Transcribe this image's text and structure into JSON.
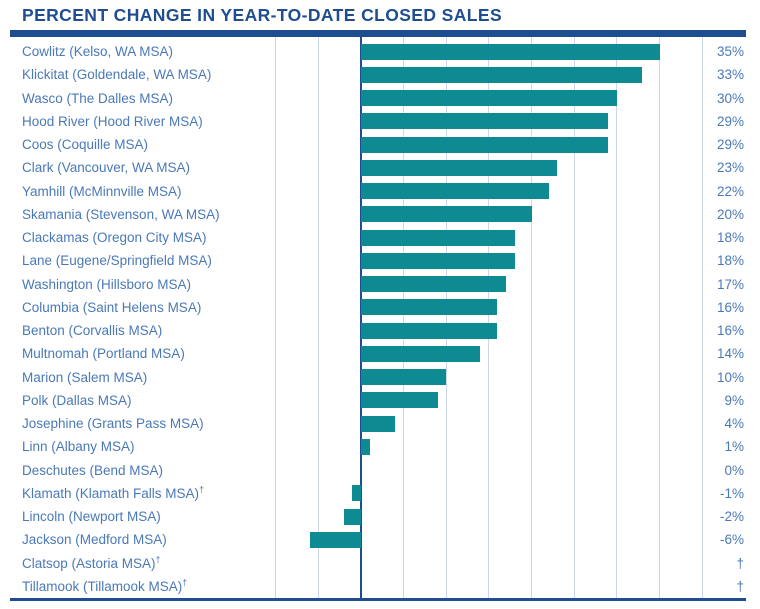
{
  "title": "PERCENT CHANGE IN YEAR-TO-DATE CLOSED SALES",
  "colors": {
    "navy": "#1E4E8F",
    "label_blue": "#4A79B8",
    "bar_teal": "#0E8A93",
    "gridline": "#CDD5E6",
    "background": "#FFFFFF"
  },
  "chart_data": {
    "type": "bar",
    "orientation": "horizontal",
    "title": "PERCENT CHANGE IN YEAR-TO-DATE CLOSED SALES",
    "xlabel": "",
    "ylabel": "",
    "xlim": [
      -10,
      40
    ],
    "gridline_step_pct": 5,
    "grid": "vertical",
    "legend": "none",
    "footnote_mark": "†",
    "categories": [
      "Cowlitz (Kelso, WA MSA)",
      "Klickitat (Goldendale, WA MSA)",
      "Wasco (The Dalles MSA)",
      "Hood River (Hood River MSA)",
      "Coos (Coquille MSA)",
      "Clark (Vancouver, WA MSA)",
      "Yamhill (McMinnville MSA)",
      "Skamania (Stevenson, WA MSA)",
      "Clackamas (Oregon City MSA)",
      "Lane (Eugene/Springfield MSA)",
      "Washington (Hillsboro MSA)",
      "Columbia (Saint Helens MSA)",
      "Benton (Corvallis MSA)",
      "Multnomah (Portland MSA)",
      "Marion (Salem MSA)",
      "Polk (Dallas MSA)",
      "Josephine (Grants Pass MSA)",
      "Linn (Albany MSA)",
      "Deschutes (Bend MSA)",
      "Klamath (Klamath Falls MSA)",
      "Lincoln (Newport MSA)",
      "Jackson (Medford MSA)",
      "Clatsop (Astoria MSA)",
      "Tillamook (Tillamook MSA)"
    ],
    "category_daggers": [
      false,
      false,
      false,
      false,
      false,
      false,
      false,
      false,
      false,
      false,
      false,
      false,
      false,
      false,
      false,
      false,
      false,
      false,
      false,
      true,
      false,
      false,
      true,
      true
    ],
    "values": [
      35,
      33,
      30,
      29,
      29,
      23,
      22,
      20,
      18,
      18,
      17,
      16,
      16,
      14,
      10,
      9,
      4,
      1,
      0,
      -1,
      -2,
      -6,
      null,
      null
    ],
    "value_labels": [
      "35%",
      "33%",
      "30%",
      "29%",
      "29%",
      "23%",
      "22%",
      "20%",
      "18%",
      "18%",
      "17%",
      "16%",
      "16%",
      "14%",
      "10%",
      "9%",
      "4%",
      "1%",
      "0%",
      "-1%",
      "-2%",
      "-6%",
      "†",
      "†"
    ]
  }
}
